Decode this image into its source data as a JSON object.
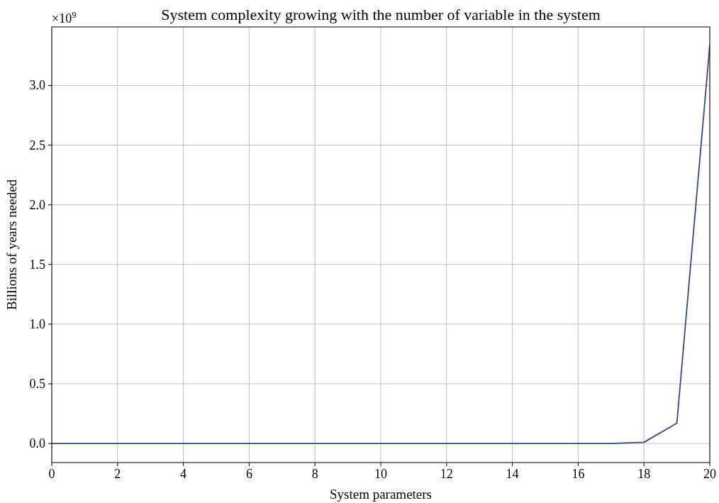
{
  "chart_data": {
    "type": "line",
    "title": "System complexity growing with the number of variable in the system",
    "xlabel": "System parameters",
    "ylabel": "Billions of years needed",
    "annotations": [
      "×10$^{9}$"
    ],
    "x": [
      0,
      1,
      2,
      3,
      4,
      5,
      6,
      7,
      8,
      9,
      10,
      11,
      12,
      13,
      14,
      15,
      16,
      17,
      18,
      19,
      20
    ],
    "series": [
      {
        "color": "#34488a",
        "values": [
          0,
          0,
          0,
          0,
          0,
          0,
          0,
          0,
          0,
          0,
          0,
          0,
          0,
          0,
          0,
          0,
          0,
          0,
          0.01,
          0.17,
          3.34
        ]
      }
    ],
    "xlim": [
      0,
      20
    ],
    "xticks": [
      0,
      2,
      4,
      6,
      8,
      10,
      12,
      14,
      16,
      18,
      20
    ],
    "ylim": [
      -0.16,
      3.49
    ],
    "yticks": [
      {
        "value": 0,
        "label": "0.0"
      },
      0.5,
      {
        "value": 1,
        "label": "1.0"
      },
      1.5,
      {
        "value": 2,
        "label": "2.0"
      },
      2.5,
      {
        "value": 3,
        "label": "3.0"
      }
    ],
    "grid": true,
    "marker": "none",
    "line_style": "solid"
  }
}
